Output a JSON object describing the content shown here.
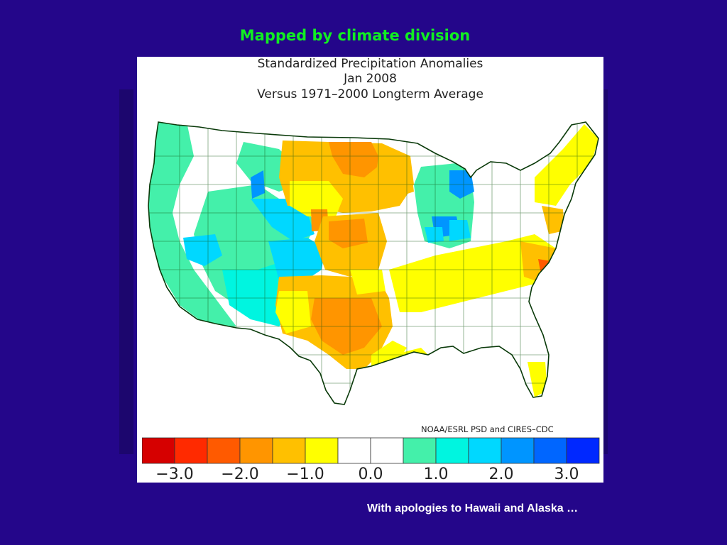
{
  "slide": {
    "title": "Mapped by climate division",
    "footer": "With apologies to Hawaii and Alaska …"
  },
  "map": {
    "title_line1": "Standardized Precipitation Anomalies",
    "title_line2": "Jan 2008",
    "title_line3": "Versus 1971–2000 Longterm Average",
    "credit": "NOAA/ESRL PSD and CIRES–CDC",
    "colors": {
      "dry3": "#d60000",
      "dry25": "#ff2a00",
      "dry2": "#ff5a00",
      "dry15": "#ff9500",
      "dry1": "#ffc000",
      "dry05": "#ffff00",
      "neutral": "#ffffff",
      "wet05": "#44f0aa",
      "wet1": "#00f5e0",
      "wet15": "#00d8ff",
      "wet2": "#0095ff",
      "wet25": "#0066ff",
      "wet3": "#0028ff"
    },
    "legend": {
      "swatches": [
        "#d60000",
        "#ff2a00",
        "#ff5a00",
        "#ff9500",
        "#ffc000",
        "#ffff00",
        "#ffffff",
        "#ffffff",
        "#44f0aa",
        "#00f5e0",
        "#00d8ff",
        "#0095ff",
        "#0066ff",
        "#0028ff"
      ],
      "ticks": [
        "−3.0",
        "−2.0",
        "−1.0",
        "0.0",
        "1.0",
        "2.0",
        "3.0"
      ]
    }
  }
}
